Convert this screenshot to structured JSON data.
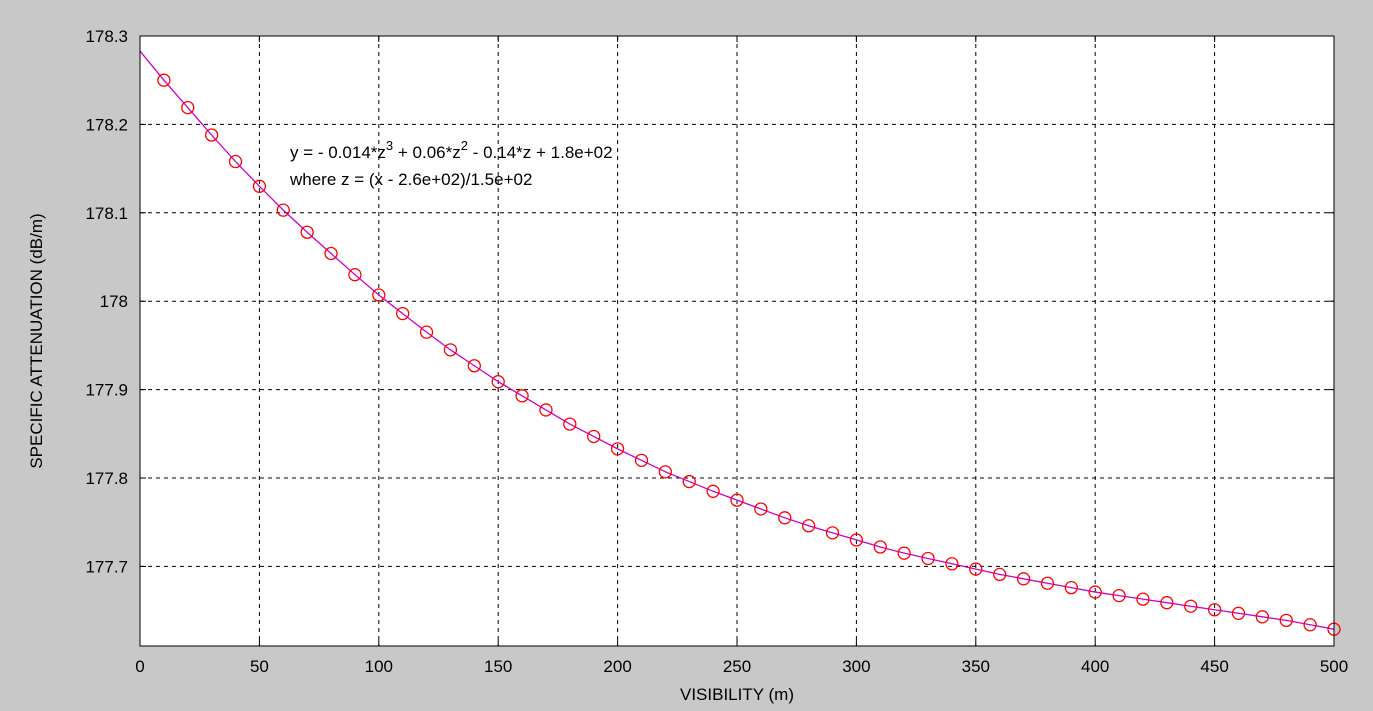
{
  "chart_data": {
    "type": "scatter",
    "title": "",
    "xlabel": "VISIBILITY (m)",
    "ylabel": "SPECIFIC ATTENUATION (dB/m)",
    "xlim": [
      0,
      500
    ],
    "ylim": [
      177.61,
      178.3
    ],
    "grid": true,
    "x_ticks": [
      0,
      50,
      100,
      150,
      200,
      250,
      300,
      350,
      400,
      450,
      500
    ],
    "y_ticks": [
      177.7,
      177.8,
      177.9,
      178,
      178.1,
      178.2,
      178.3
    ],
    "x_tick_labels": [
      "0",
      "50",
      "100",
      "150",
      "200",
      "250",
      "300",
      "350",
      "400",
      "450",
      "500"
    ],
    "y_tick_labels": [
      "177.7",
      "177.8",
      "177.9",
      "178",
      "178.1",
      "178.2",
      "178.3"
    ],
    "annotation": {
      "line1_prefix": "y = - 0.014*z",
      "line1_exp1": "3",
      "line1_mid": " + 0.06*z",
      "line1_exp2": "2",
      "line1_suffix": " - 0.14*z + 1.8e+02",
      "line2": "where z = (x - 2.6e+02)/1.5e+02"
    },
    "series": [
      {
        "style": "markers",
        "color": "#ff0000",
        "marker": "circle",
        "x": [
          10,
          20,
          30,
          40,
          50,
          60,
          70,
          80,
          90,
          100,
          110,
          120,
          130,
          140,
          150,
          160,
          170,
          180,
          190,
          200,
          210,
          220,
          230,
          240,
          250,
          260,
          270,
          280,
          290,
          300,
          310,
          320,
          330,
          340,
          350,
          360,
          370,
          380,
          390,
          400,
          410,
          420,
          430,
          440,
          450,
          460,
          470,
          480,
          490,
          500
        ],
        "y": [
          178.25,
          178.219,
          178.188,
          178.158,
          178.13,
          178.103,
          178.078,
          178.054,
          178.03,
          178.007,
          177.986,
          177.965,
          177.945,
          177.927,
          177.909,
          177.893,
          177.877,
          177.861,
          177.847,
          177.833,
          177.82,
          177.807,
          177.796,
          177.785,
          177.775,
          177.765,
          177.755,
          177.746,
          177.738,
          177.73,
          177.722,
          177.715,
          177.709,
          177.703,
          177.697,
          177.691,
          177.686,
          177.681,
          177.676,
          177.671,
          177.667,
          177.663,
          177.659,
          177.655,
          177.651,
          177.647,
          177.643,
          177.639,
          177.634,
          177.629
        ]
      },
      {
        "style": "line",
        "color": "#cc00cc",
        "x": [
          0,
          10,
          20,
          30,
          40,
          50,
          60,
          70,
          80,
          90,
          100,
          110,
          120,
          130,
          140,
          150,
          160,
          170,
          180,
          190,
          200,
          210,
          220,
          230,
          240,
          250,
          260,
          270,
          280,
          290,
          300,
          310,
          320,
          330,
          340,
          350,
          360,
          370,
          380,
          390,
          400,
          410,
          420,
          430,
          440,
          450,
          460,
          470,
          480,
          490,
          500
        ],
        "y": [
          178.283,
          178.25,
          178.219,
          178.188,
          178.158,
          178.13,
          178.103,
          178.078,
          178.054,
          178.03,
          178.007,
          177.986,
          177.965,
          177.945,
          177.927,
          177.909,
          177.893,
          177.877,
          177.861,
          177.847,
          177.833,
          177.82,
          177.807,
          177.796,
          177.785,
          177.775,
          177.765,
          177.755,
          177.746,
          177.738,
          177.73,
          177.722,
          177.715,
          177.709,
          177.703,
          177.697,
          177.691,
          177.686,
          177.681,
          177.676,
          177.671,
          177.667,
          177.663,
          177.659,
          177.655,
          177.651,
          177.647,
          177.643,
          177.639,
          177.634,
          177.629
        ]
      }
    ]
  }
}
